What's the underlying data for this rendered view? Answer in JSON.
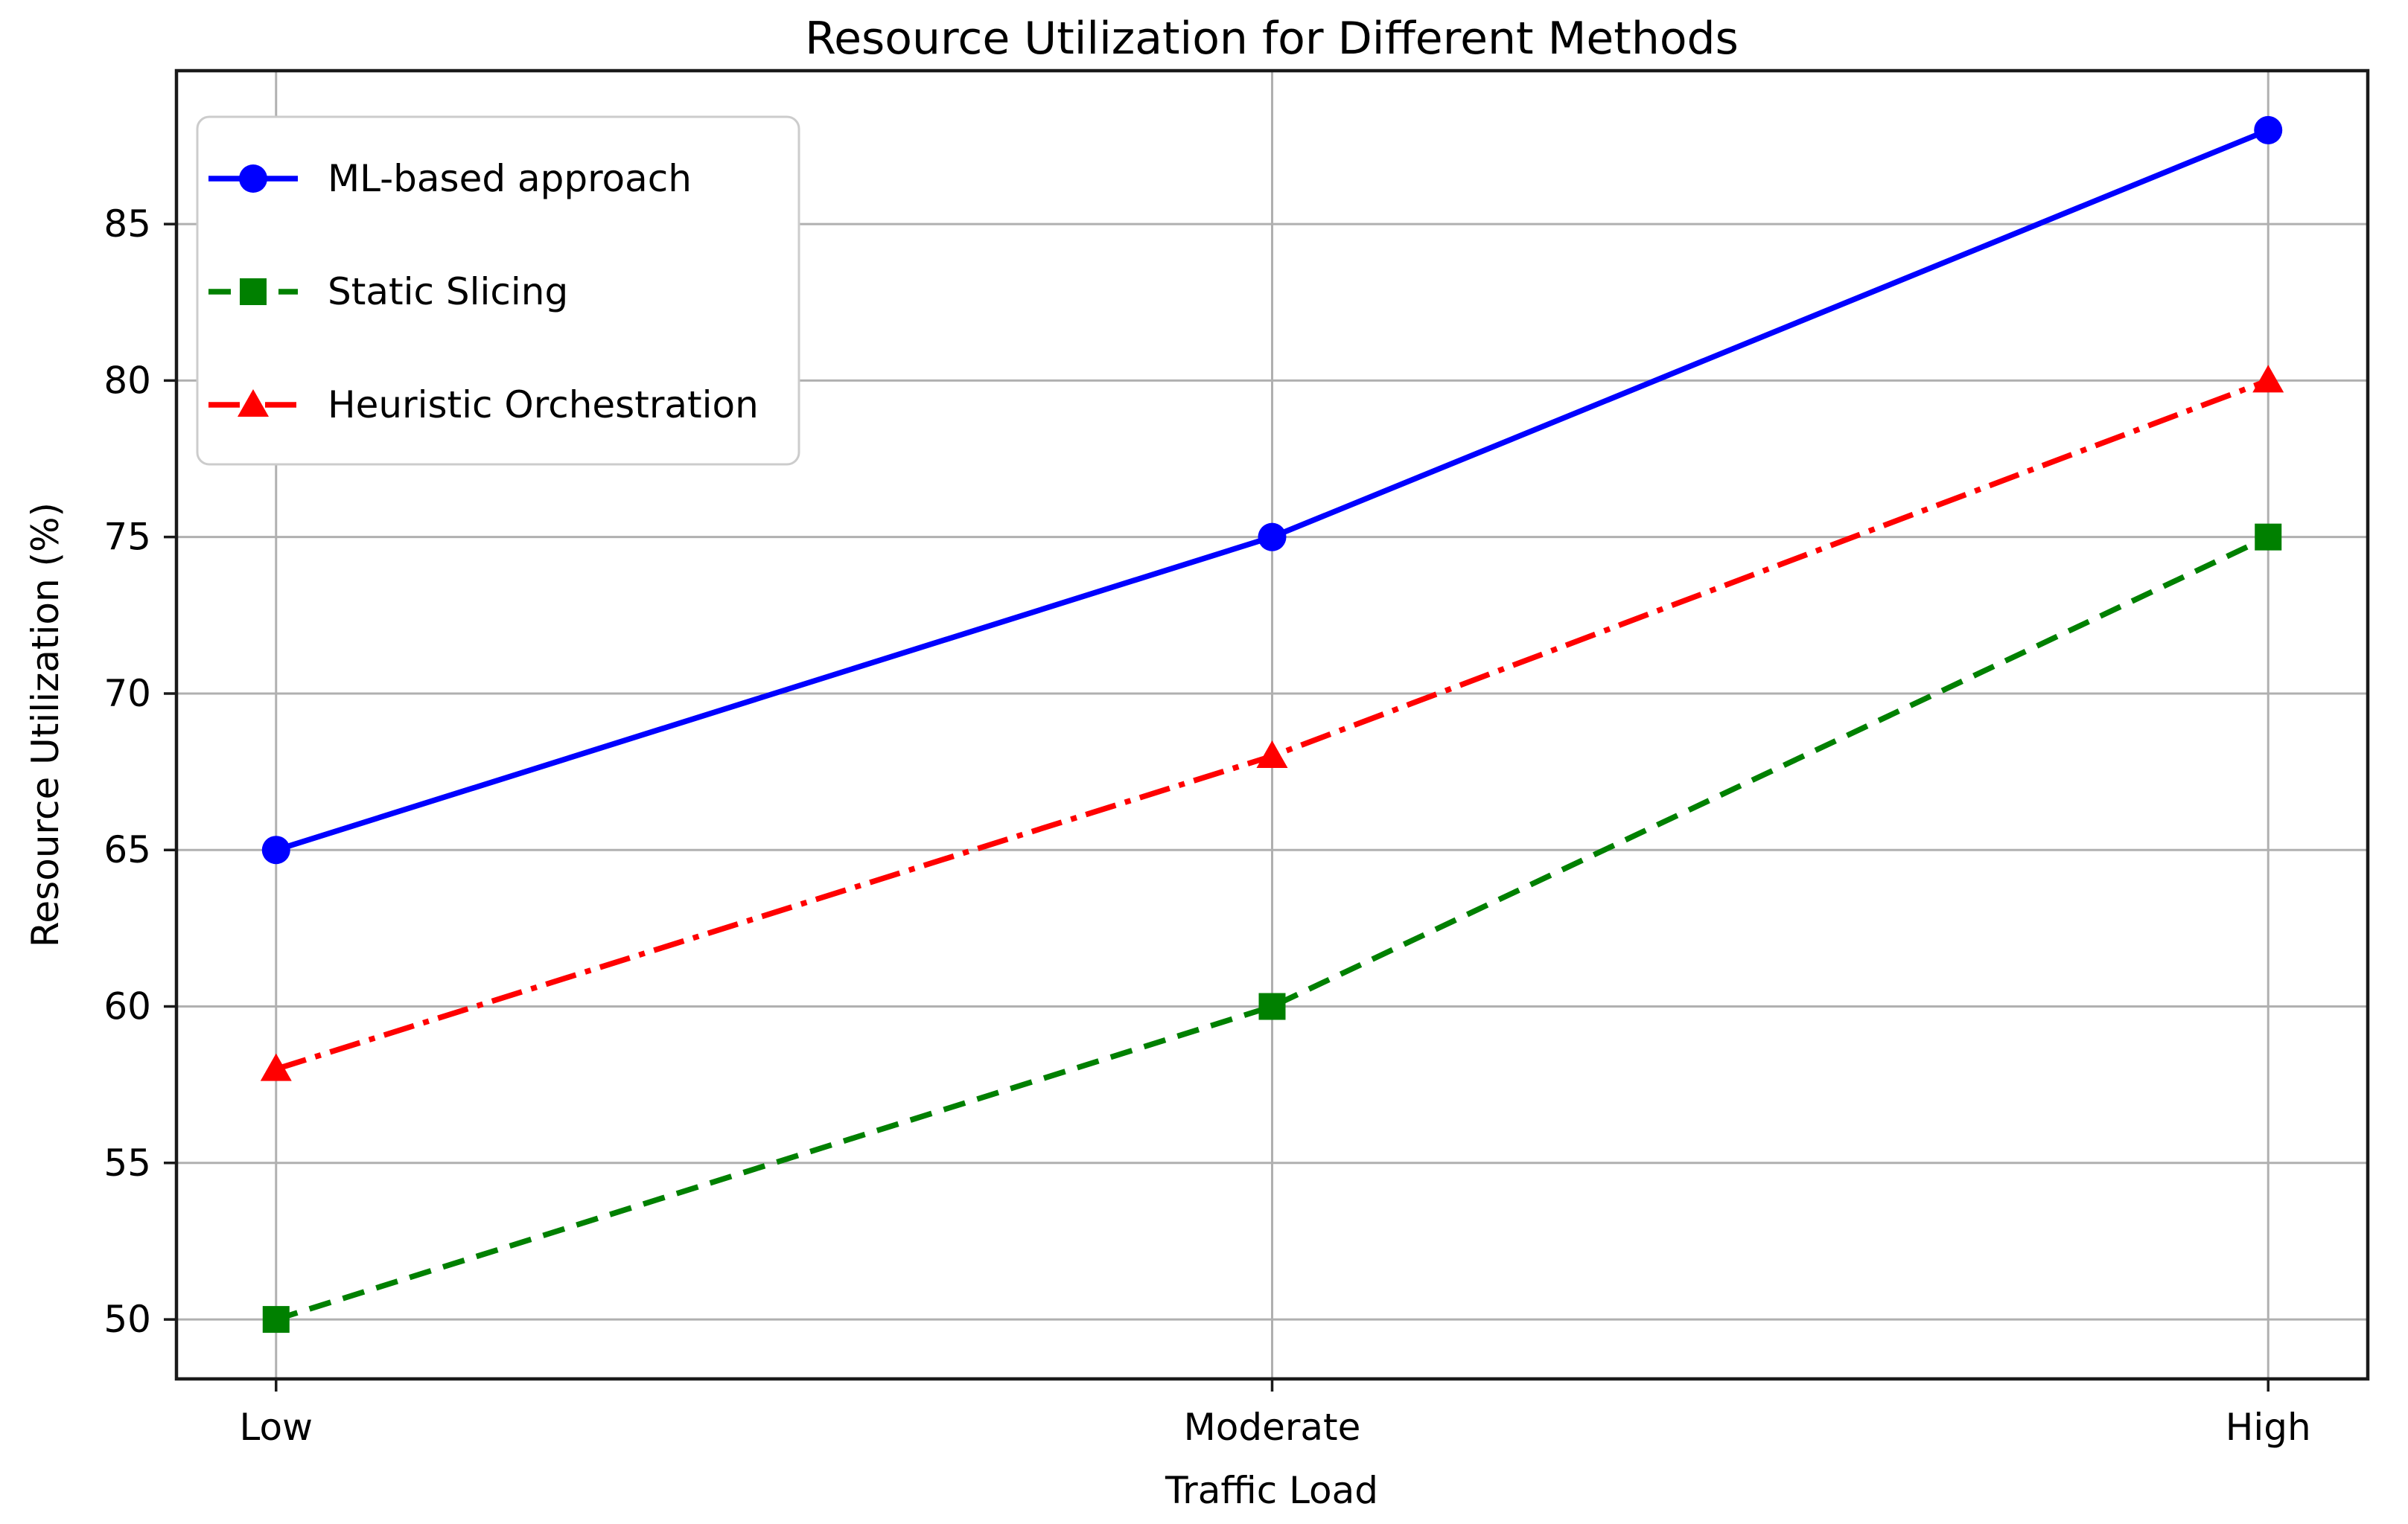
{
  "chart_data": {
    "type": "line",
    "title": "Resource Utilization for Different Methods",
    "xlabel": "Traffic Load",
    "ylabel": "Resource Utilization (%)",
    "categories": [
      "Low",
      "Moderate",
      "High"
    ],
    "series": [
      {
        "name": "ML-based approach",
        "values": [
          65,
          75,
          88
        ],
        "color": "#0000ff",
        "linestyle": "solid",
        "marker": "circle"
      },
      {
        "name": "Static Slicing",
        "values": [
          50,
          60,
          75
        ],
        "color": "#008000",
        "linestyle": "dashed",
        "marker": "square"
      },
      {
        "name": "Heuristic Orchestration",
        "values": [
          58,
          68,
          80
        ],
        "color": "#ff0000",
        "linestyle": "dashdot",
        "marker": "triangle"
      }
    ],
    "y_ticks": [
      50,
      55,
      60,
      65,
      70,
      75,
      80,
      85
    ],
    "ylim": [
      48.1,
      89.9
    ],
    "xlim": [
      -0.1,
      2.1
    ],
    "grid": true,
    "legend_position": "upper left",
    "colors": {
      "grid": "#b0b0b0",
      "spine": "#1a1a1a",
      "text": "#000000",
      "legend_border": "#cccccc",
      "background": "#ffffff"
    }
  }
}
